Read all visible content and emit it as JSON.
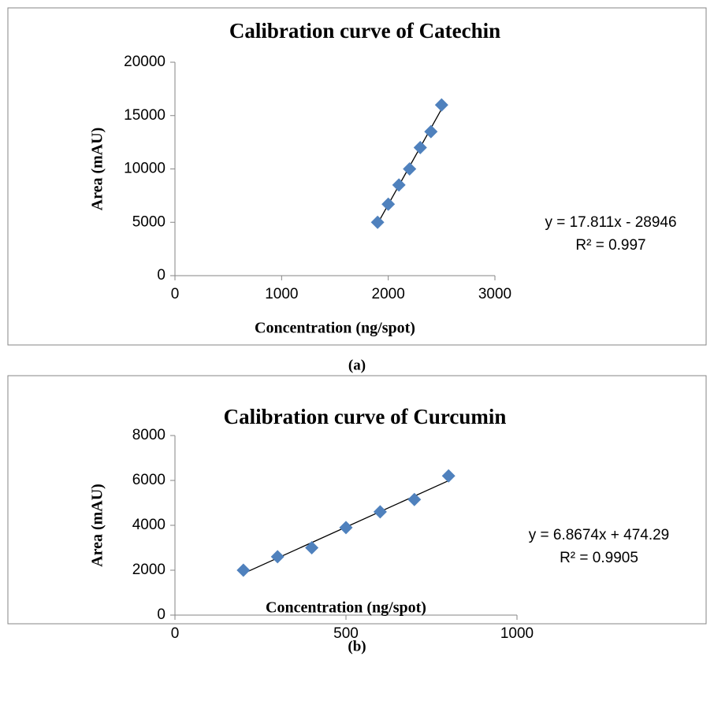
{
  "chart_data": [
    {
      "type": "scatter",
      "title": "Calibration curve of Catechin",
      "x_label": "Concentration (ng/spot)",
      "y_label": "Area (mAU)",
      "x": [
        1900,
        2000,
        2100,
        2200,
        2300,
        2400,
        2500
      ],
      "values": [
        5000,
        6700,
        8500,
        10000,
        12000,
        13500,
        16000
      ],
      "color": "#4f81bd",
      "xlim": [
        0,
        3000
      ],
      "xticks": [
        0,
        1000,
        2000,
        3000
      ],
      "ylim": [
        0,
        20000
      ],
      "yticks": [
        0,
        5000,
        10000,
        15000,
        20000
      ],
      "trendline": {
        "equation": "y = 17.811x - 28946",
        "r2": "R² = 0.997"
      },
      "caption": "(a)"
    },
    {
      "type": "scatter",
      "title": "Calibration curve of Curcumin",
      "x_label": "Concentration (ng/spot)",
      "y_label": "Area (mAU)",
      "x": [
        200,
        300,
        400,
        500,
        600,
        700,
        800
      ],
      "values": [
        2000,
        2600,
        3000,
        3900,
        4600,
        5150,
        6200
      ],
      "color": "#4f81bd",
      "xlim": [
        0,
        1000
      ],
      "xticks": [
        0,
        500,
        1000
      ],
      "ylim": [
        0,
        8000
      ],
      "yticks": [
        0,
        2000,
        4000,
        6000,
        8000
      ],
      "trendline": {
        "equation": "y = 6.8674x + 474.29",
        "r2": "R² = 0.9905"
      },
      "caption": "(b)"
    }
  ]
}
